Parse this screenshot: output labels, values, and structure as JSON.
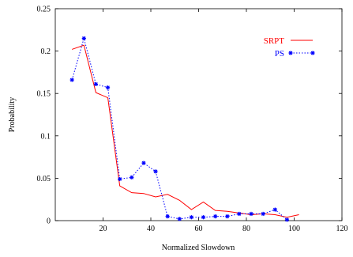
{
  "chart_data": {
    "type": "line",
    "title": "",
    "xlabel": "Normalized Slowdown",
    "ylabel": "Probability",
    "xlim": [
      0,
      120
    ],
    "ylim": [
      0,
      0.25
    ],
    "xticks": [
      20,
      40,
      60,
      80,
      100,
      120
    ],
    "xtick_labels": [
      "20",
      "40",
      "60",
      "80",
      "100",
      "120"
    ],
    "yticks": [
      0,
      0.05,
      0.1,
      0.15,
      0.2,
      0.25
    ],
    "ytick_labels": [
      "0",
      "0.05",
      "0.1",
      "0.15",
      "0.2",
      "0.25"
    ],
    "grid": false,
    "legend_position": "top-right",
    "series": [
      {
        "name": "SRPT",
        "color": "#ff0000",
        "style": "solid",
        "marker": "none",
        "x": [
          7,
          12,
          17,
          22,
          27,
          32,
          37,
          42,
          47,
          52,
          57,
          62,
          67,
          72,
          77,
          82,
          87,
          92,
          97,
          102
        ],
        "y": [
          0.202,
          0.207,
          0.151,
          0.145,
          0.041,
          0.033,
          0.032,
          0.028,
          0.031,
          0.024,
          0.013,
          0.022,
          0.012,
          0.011,
          0.009,
          0.007,
          0.008,
          0.007,
          0.004,
          0.007
        ]
      },
      {
        "name": "PS",
        "color": "#0000ff",
        "style": "dotted",
        "marker": "star",
        "x": [
          7,
          12,
          17,
          22,
          27,
          32,
          37,
          42,
          47,
          52,
          57,
          62,
          67,
          72,
          77,
          82,
          87,
          92,
          97
        ],
        "y": [
          0.166,
          0.215,
          0.161,
          0.157,
          0.049,
          0.051,
          0.068,
          0.058,
          0.005,
          0.002,
          0.004,
          0.004,
          0.005,
          0.005,
          0.008,
          0.008,
          0.008,
          0.013,
          0.001
        ]
      }
    ]
  }
}
